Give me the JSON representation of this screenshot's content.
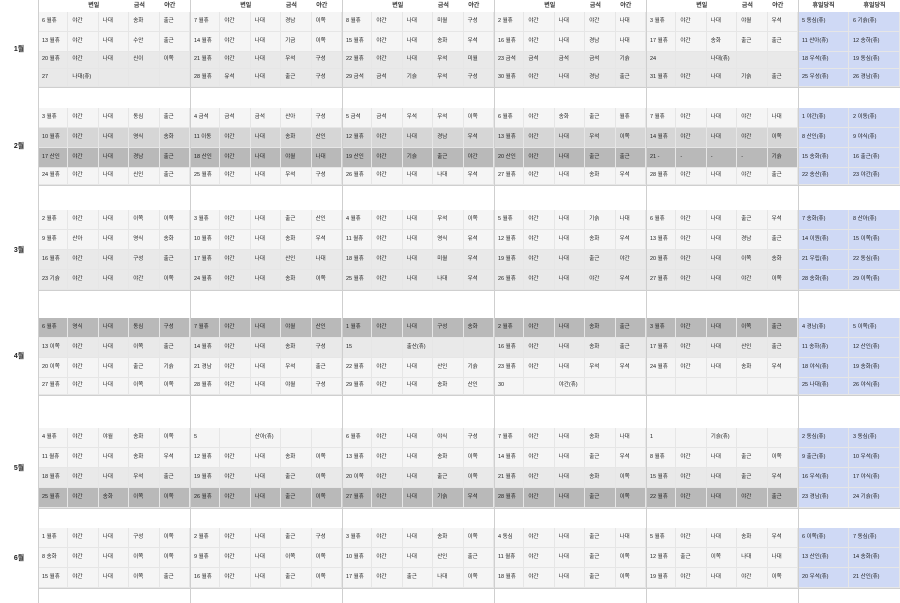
{
  "colors": {
    "bg": "#ffffff",
    "shade0": "#f5f5f5",
    "shade1": "#e9e9e9",
    "shade2": "#d6d6d6",
    "shade3": "#b9b9b9",
    "holiday_blue": "#cfd9f5"
  },
  "header": {
    "weekdays": [
      {
        "col1": "",
        "col2": "변일",
        "col3": "",
        "col4": "금석",
        "col5": "야간"
      },
      {
        "col1": "",
        "col2": "변일",
        "col3": "",
        "col4": "금석",
        "col5": "야간"
      },
      {
        "col1": "",
        "col2": "변일",
        "col3": "",
        "col4": "금석",
        "col5": "야간"
      },
      {
        "col1": "",
        "col2": "변일",
        "col3": "",
        "col4": "금석",
        "col5": "야간"
      },
      {
        "col1": "",
        "col2": "변일",
        "col3": "",
        "col4": "금석",
        "col5": "야간"
      }
    ],
    "weekend": [
      "휴일당직",
      "휴일당직"
    ]
  },
  "months": [
    {
      "label": "1월",
      "rows": [
        [
          "6 월휴",
          "야간",
          "나대",
          "송화",
          "출근",
          "7 월휴",
          "야간",
          "나대",
          "경남",
          "이쪽",
          "8 월휴",
          "야간",
          "나대",
          "미월",
          "구성",
          "2 월휴",
          "야간",
          "나대",
          "야간",
          "나대",
          "3 월휴",
          "야간",
          "나대",
          "야월",
          "우석",
          "5 동심(휴)",
          "6 기슭(휴)"
        ],
        [
          "13 월휴",
          "야간",
          "나대",
          "수안",
          "출근",
          "14 월휴",
          "야간",
          "나대",
          "기금",
          "이쪽",
          "15 월휴",
          "야간",
          "나대",
          "송화",
          "우석",
          "16 월휴",
          "야간",
          "나대",
          "경남",
          "나대",
          "17 월휴",
          "야간",
          "송화",
          "출근",
          "출근",
          "11 산아(휴)",
          "12 송하(휴)"
        ],
        [
          "20 월휴",
          "야간",
          "나대",
          "신이",
          "이쪽",
          "21 월휴",
          "야간",
          "나대",
          "우석",
          "구성",
          "22 월휴",
          "야간",
          "나대",
          "우석",
          "미월",
          "23 금석",
          "금석",
          "금석",
          "금석",
          "기슭",
          "24",
          "",
          "나대(휴)",
          "",
          "",
          "18 우석(휴)",
          "19 동심(휴)"
        ],
        [
          "27",
          "나대(휴)",
          "",
          "",
          "",
          "28 월휴",
          "유석",
          "나대",
          "출근",
          "구성",
          "29 금석",
          "금석",
          "기슭",
          "우석",
          "구성",
          "30 월휴",
          "야간",
          "나대",
          "경남",
          "출근",
          "31 월휴",
          "야간",
          "나대",
          "기슭",
          "출근",
          "25 우성(휴)",
          "26 경남(휴)"
        ]
      ]
    },
    {
      "label": "2월",
      "rows": [
        [
          "3 월휴",
          "야간",
          "나대",
          "동심",
          "출근",
          "4 금석",
          "금석",
          "금석",
          "산아",
          "구성",
          "5 금석",
          "금석",
          "우석",
          "우석",
          "이쪽",
          "6 월휴",
          "야간",
          "송화",
          "출근",
          "월휴",
          "7 월휴",
          "야간",
          "나대",
          "야간",
          "나대",
          "1 야간(휴)",
          "2 이동(휴)"
        ],
        [
          "10 월휴",
          "야간",
          "나대",
          "영식",
          "송화",
          "11 이동",
          "야간",
          "나대",
          "송화",
          "산인",
          "12 월휴",
          "야간",
          "나대",
          "경남",
          "우석",
          "13 월휴",
          "야간",
          "나대",
          "우석",
          "이쪽",
          "14 월휴",
          "야간",
          "나대",
          "야간",
          "이쪽",
          "8 산인(휴)",
          "9 야식(휴)"
        ],
        [
          "17 산인",
          "야간",
          "나대",
          "경남",
          "출근",
          "18 산인",
          "야간",
          "나대",
          "야월",
          "나대",
          "19 산인",
          "야간",
          "기슭",
          "출근",
          "야간",
          "20 산인",
          "야간",
          "나대",
          "출근",
          "출근",
          "21 -",
          "-",
          "-",
          "-",
          "기슭",
          "15 송화(휴)",
          "16 출근(휴)"
        ],
        [
          "24 월휴",
          "야간",
          "나대",
          "신인",
          "출근",
          "25 월휴",
          "야간",
          "나대",
          "우석",
          "구성",
          "26 월휴",
          "야간",
          "나대",
          "나대",
          "우석",
          "27 월휴",
          "야간",
          "나대",
          "송화",
          "우석",
          "28 월휴",
          "야간",
          "나대",
          "야간",
          "출근",
          "22 송산(휴)",
          "23 야간(휴)"
        ]
      ]
    },
    {
      "label": "3월",
      "rows": [
        [
          "2 월휴",
          "야간",
          "나대",
          "이쪽",
          "이쪽",
          "3 월휴",
          "야간",
          "나대",
          "출근",
          "산인",
          "4 월휴",
          "야간",
          "나대",
          "우석",
          "이쪽",
          "5 월휴",
          "야간",
          "나대",
          "기슭",
          "나대",
          "6 월휴",
          "야간",
          "나대",
          "출근",
          "우석",
          "7 송화(휴)",
          "8 산아(휴)"
        ],
        [
          "9 월휴",
          "산아",
          "나대",
          "영식",
          "송화",
          "10 월휴",
          "야간",
          "나대",
          "송화",
          "우석",
          "11 월휴",
          "야간",
          "나대",
          "영식",
          "유석",
          "12 월휴",
          "야간",
          "나대",
          "송화",
          "우석",
          "13 월휴",
          "야간",
          "나대",
          "경남",
          "출근",
          "14 이원(휴)",
          "15 이쪽(휴)"
        ],
        [
          "16 월휴",
          "야간",
          "나대",
          "구성",
          "출근",
          "17 월휴",
          "야간",
          "나대",
          "산인",
          "나대",
          "18 월휴",
          "야간",
          "나대",
          "미월",
          "우석",
          "19 월휴",
          "야간",
          "나대",
          "출근",
          "야간",
          "20 월휴",
          "야간",
          "나대",
          "이쪽",
          "송화",
          "21 우립(휴)",
          "22 동심(휴)"
        ],
        [
          "23 기슭",
          "야간",
          "나대",
          "야간",
          "이쪽",
          "24 월휴",
          "야간",
          "나대",
          "송화",
          "이쪽",
          "25 월휴",
          "야간",
          "나대",
          "나대",
          "우석",
          "26 월휴",
          "야간",
          "나대",
          "야간",
          "우석",
          "27 월휴",
          "야간",
          "나대",
          "야간",
          "이쪽",
          "28 송화(휴)",
          "29 이쪽(휴)"
        ]
      ]
    },
    {
      "label": "4월",
      "rows": [
        [
          "6 월휴",
          "영식",
          "나대",
          "동심",
          "구성",
          "7 월휴",
          "야간",
          "나대",
          "야월",
          "산인",
          "1 월휴",
          "야간",
          "나대",
          "구성",
          "송화",
          "2 월휴",
          "야간",
          "나대",
          "송화",
          "출근",
          "3 월휴",
          "야간",
          "나대",
          "이쪽",
          "출근",
          "4 경남(휴)",
          "5 이쪽(휴)"
        ],
        [
          "13 이쪽",
          "야간",
          "나대",
          "이쪽",
          "출근",
          "14 월휴",
          "야간",
          "나대",
          "송화",
          "구성",
          "15",
          "",
          "출산(휴)",
          "",
          "",
          "16 월휴",
          "야간",
          "나대",
          "송화",
          "출근",
          "17 월휴",
          "야간",
          "나대",
          "산인",
          "출근",
          "11 송하(휴)",
          "12 산인(휴)"
        ],
        [
          "20 이쪽",
          "야간",
          "나대",
          "출근",
          "기슭",
          "21 경남",
          "야간",
          "나대",
          "우석",
          "출근",
          "22 월휴",
          "야간",
          "나대",
          "산인",
          "기슭",
          "23 월휴",
          "야간",
          "나대",
          "우석",
          "우석",
          "24 월휴",
          "야간",
          "나대",
          "송화",
          "우석",
          "18 야식(휴)",
          "19 송화(휴)"
        ],
        [
          "27 월휴",
          "야간",
          "나대",
          "이쪽",
          "이쪽",
          "28 월휴",
          "야간",
          "나대",
          "야월",
          "구성",
          "29 월휴",
          "야간",
          "나대",
          "송화",
          "산인",
          "30",
          "",
          "야간(휴)",
          "",
          "",
          "",
          "",
          "",
          "",
          "",
          "25 나대(휴)",
          "26 야식(휴)"
        ]
      ]
    },
    {
      "label": "5월",
      "rows": [
        [
          "4 월휴",
          "야간",
          "야월",
          "송화",
          "이쪽",
          "5",
          "",
          "산아(휴)",
          "",
          "",
          "6 월휴",
          "야간",
          "나대",
          "야식",
          "구성",
          "7 월휴",
          "야간",
          "나대",
          "송화",
          "나대",
          "1",
          "",
          "기슭(휴)",
          "",
          "",
          "2 동심(휴)",
          "3 동심(휴)"
        ],
        [
          "11 월휴",
          "야간",
          "나대",
          "송화",
          "우석",
          "12 월휴",
          "야간",
          "나대",
          "송화",
          "이쪽",
          "13 월휴",
          "야간",
          "나대",
          "송화",
          "이쪽",
          "14 월휴",
          "야간",
          "나대",
          "출근",
          "우석",
          "8 월휴",
          "야간",
          "나대",
          "출근",
          "이쪽",
          "9 출근(휴)",
          "10 우석(휴)"
        ],
        [
          "18 월휴",
          "야간",
          "나대",
          "우석",
          "출근",
          "19 월휴",
          "야간",
          "나대",
          "출근",
          "이쪽",
          "20 이쪽",
          "야간",
          "나대",
          "출근",
          "이쪽",
          "21 월휴",
          "야간",
          "나대",
          "송화",
          "이쪽",
          "15 월휴",
          "야간",
          "나대",
          "출근",
          "우석",
          "16 우석(휴)",
          "17 야식(휴)"
        ],
        [
          "25 월휴",
          "야간",
          "송화",
          "이쪽",
          "이쪽",
          "26 월휴",
          "야간",
          "나대",
          "출근",
          "이쪽",
          "27 월휴",
          "야간",
          "나대",
          "기슭",
          "우석",
          "28 월휴",
          "야간",
          "나대",
          "출근",
          "이쪽",
          "22 월휴",
          "야간",
          "나대",
          "야간",
          "출근",
          "23 경남(휴)",
          "24 기슭(휴)"
        ]
      ]
    },
    {
      "label": "6월",
      "rows": [
        [
          "1 월휴",
          "야간",
          "나대",
          "구성",
          "이쪽",
          "2 월휴",
          "야간",
          "나대",
          "출근",
          "구성",
          "3 월휴",
          "야간",
          "나대",
          "송화",
          "이쪽",
          "4 동심",
          "야간",
          "나대",
          "출근",
          "나대",
          "5 월휴",
          "야간",
          "나대",
          "송화",
          "우석",
          "6 이쪽(휴)",
          "7 동심(휴)"
        ],
        [
          "8 송화",
          "야간",
          "나대",
          "이쪽",
          "이쪽",
          "9 월휴",
          "야간",
          "나대",
          "이쪽",
          "이쪽",
          "10 월휴",
          "야간",
          "나대",
          "산인",
          "출근",
          "11 월휴",
          "야간",
          "나대",
          "출근",
          "이쪽",
          "12 월휴",
          "출근",
          "이쪽",
          "나대",
          "나대",
          "13 산인(휴)",
          "14 송화(휴)"
        ],
        [
          "15 월휴",
          "야간",
          "나대",
          "이쪽",
          "출근",
          "16 월휴",
          "야간",
          "나대",
          "출근",
          "이쪽",
          "17 월휴",
          "야간",
          "출근",
          "나대",
          "이쪽",
          "18 월휴",
          "야간",
          "나대",
          "출근",
          "이쪽",
          "19 월휴",
          "야간",
          "나대",
          "야간",
          "이쪽",
          "20 우석(휴)",
          "21 산인(휴)"
        ]
      ]
    }
  ]
}
